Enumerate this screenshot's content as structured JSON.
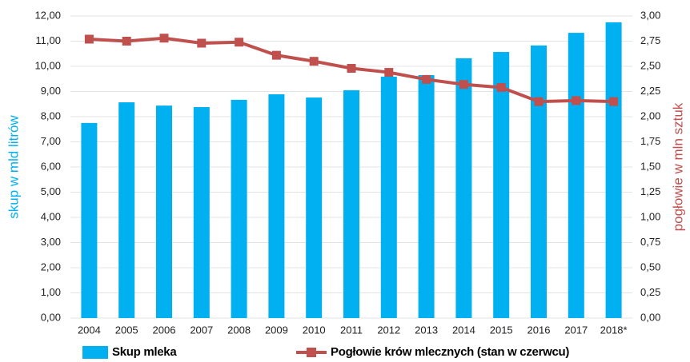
{
  "chart_data": {
    "type": "bar_line",
    "categories": [
      "2004",
      "2005",
      "2006",
      "2007",
      "2008",
      "2009",
      "2010",
      "2011",
      "2012",
      "2013",
      "2014",
      "2015",
      "2016",
      "2017",
      "2018*"
    ],
    "series": [
      {
        "name": "Skup mleka",
        "type": "bar",
        "color": "#00b0f0",
        "values": [
          7.75,
          8.57,
          8.44,
          8.38,
          8.67,
          8.89,
          8.76,
          9.05,
          9.59,
          9.65,
          10.32,
          10.57,
          10.83,
          11.33,
          11.75
        ]
      },
      {
        "name": "Pogłowie krów mlecznych (stan w czerwcu)",
        "type": "line",
        "axis": "y2",
        "color": "#c0504d",
        "values": [
          2.77,
          2.75,
          2.78,
          2.73,
          2.74,
          2.61,
          2.55,
          2.48,
          2.44,
          2.37,
          2.32,
          2.29,
          2.15,
          2.16,
          2.15
        ]
      }
    ],
    "ylabel": "skup w mld litrów",
    "y2label": "pogłowie w mln sztuk",
    "ylim": [
      0,
      12
    ],
    "yticks": [
      {
        "value": 0,
        "label": "0,00"
      },
      {
        "value": 1,
        "label": "1,00"
      },
      {
        "value": 2,
        "label": "2,00"
      },
      {
        "value": 3,
        "label": "3,00"
      },
      {
        "value": 4,
        "label": "4,00"
      },
      {
        "value": 5,
        "label": "5,00"
      },
      {
        "value": 6,
        "label": "6,00"
      },
      {
        "value": 7,
        "label": "7,00"
      },
      {
        "value": 8,
        "label": "8,00"
      },
      {
        "value": 9,
        "label": "9,00"
      },
      {
        "value": 10,
        "label": "10,00"
      },
      {
        "value": 11,
        "label": "11,00"
      },
      {
        "value": 12,
        "label": "12,00"
      }
    ],
    "y2lim": [
      0,
      3
    ],
    "y2ticks": [
      {
        "value": 0,
        "label": "0,00"
      },
      {
        "value": 0.25,
        "label": "0,25"
      },
      {
        "value": 0.5,
        "label": "0,50"
      },
      {
        "value": 0.75,
        "label": "0,75"
      },
      {
        "value": 1,
        "label": "1,00"
      },
      {
        "value": 1.25,
        "label": "1,25"
      },
      {
        "value": 1.5,
        "label": "1,50"
      },
      {
        "value": 1.75,
        "label": "1,75"
      },
      {
        "value": 2,
        "label": "2,00"
      },
      {
        "value": 2.25,
        "label": "2,25"
      },
      {
        "value": 2.5,
        "label": "2,50"
      },
      {
        "value": 2.75,
        "label": "2,75"
      },
      {
        "value": 3,
        "label": "3,00"
      }
    ],
    "grid": true,
    "legend": "bottom"
  }
}
